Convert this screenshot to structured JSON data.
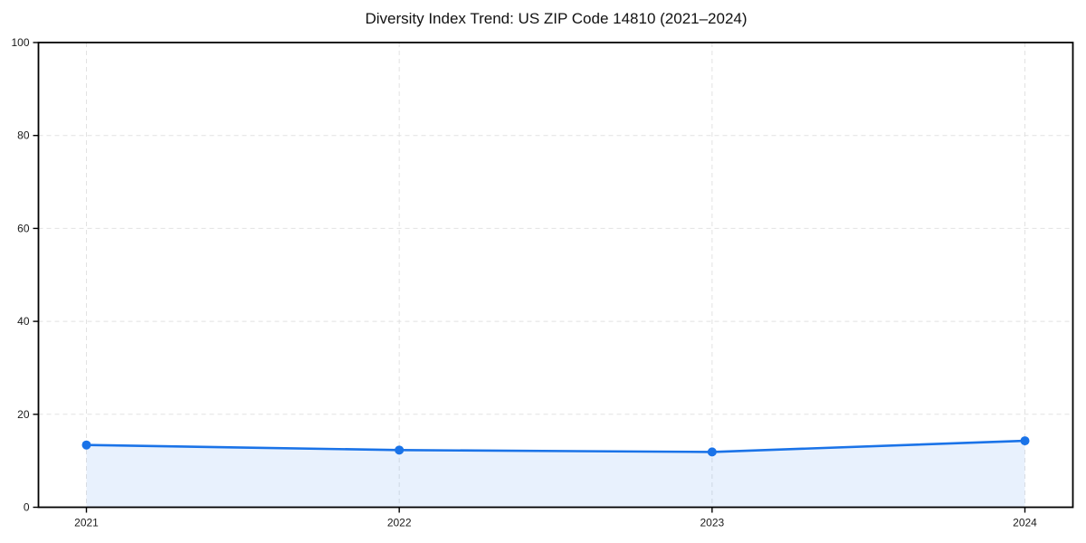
{
  "chart_data": {
    "type": "area",
    "title": "Diversity Index Trend: US ZIP Code 14810 (2021–2024)",
    "categories": [
      "2021",
      "2022",
      "2023",
      "2024"
    ],
    "series": [
      {
        "name": "Diversity Index",
        "values": [
          13.4,
          12.3,
          11.9,
          14.3
        ]
      }
    ],
    "xlabel": "",
    "ylabel": "",
    "ylim": [
      0,
      100
    ],
    "y_ticks": [
      0,
      20,
      40,
      60,
      80,
      100
    ],
    "grid": "dashed",
    "legend": "none",
    "colors": {
      "line": "#1a73e8",
      "marker": "#1a73e8",
      "fill": "rgba(26,115,232,0.10)",
      "grid": "#e2e2e2",
      "axis": "#000000",
      "tick_text": "#1a1a1a",
      "background": "#ffffff"
    }
  }
}
